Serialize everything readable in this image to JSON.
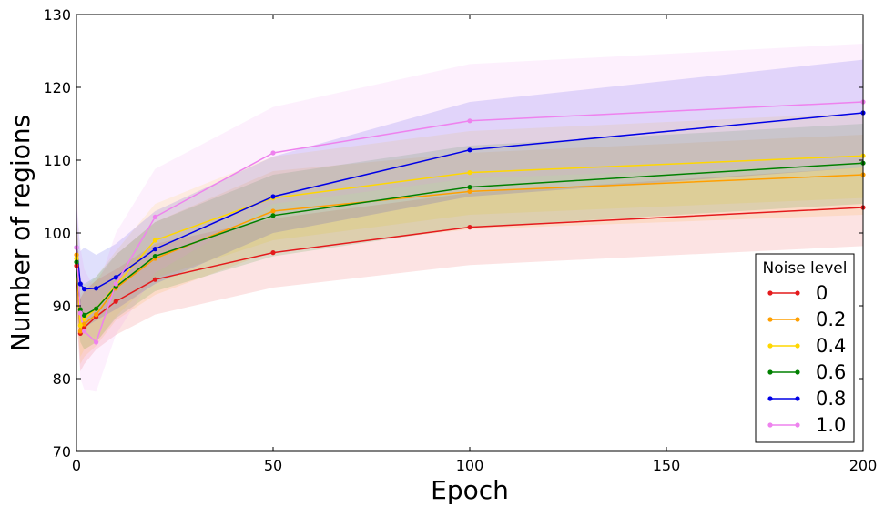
{
  "chart_data": {
    "type": "line",
    "title": "",
    "xlabel": "Epoch",
    "ylabel": "Number of regions",
    "xlim": [
      0,
      200
    ],
    "ylim": [
      70,
      130
    ],
    "x_ticks": [
      0,
      50,
      100,
      150,
      200
    ],
    "y_ticks": [
      70,
      80,
      90,
      100,
      110,
      120,
      130
    ],
    "grid": false,
    "legend": {
      "title": "Noise level",
      "placement": "lower-right"
    },
    "x": [
      0,
      1,
      2,
      5,
      10,
      20,
      50,
      100,
      200
    ],
    "series": [
      {
        "name": "0",
        "color": "#e41a1c",
        "values": [
          95.5,
          86.2,
          87.0,
          88.5,
          90.6,
          93.6,
          97.3,
          100.8,
          103.5
        ],
        "band_low": [
          88.5,
          81.0,
          82.0,
          84.0,
          86.0,
          88.8,
          92.5,
          95.6,
          98.2
        ],
        "band_high": [
          102.0,
          91.0,
          92.0,
          93.5,
          95.0,
          98.5,
          102.0,
          105.5,
          109.0
        ]
      },
      {
        "name": "0.2",
        "color": "#ff9f00",
        "values": [
          97.0,
          86.5,
          87.5,
          88.8,
          92.4,
          96.5,
          103.0,
          105.7,
          108.0
        ],
        "band_low": [
          90.0,
          82.0,
          83.0,
          84.5,
          88.0,
          91.5,
          97.5,
          100.5,
          102.5
        ],
        "band_high": [
          104.0,
          91.0,
          92.0,
          93.5,
          97.0,
          101.5,
          108.5,
          111.0,
          113.5
        ]
      },
      {
        "name": "0.4",
        "color": "#ffd700",
        "values": [
          96.5,
          87.3,
          88.2,
          89.6,
          92.8,
          99.0,
          104.8,
          108.3,
          110.6
        ],
        "band_low": [
          89.5,
          83.0,
          84.0,
          85.0,
          88.5,
          93.8,
          99.0,
          102.5,
          104.8
        ],
        "band_high": [
          103.5,
          91.5,
          92.5,
          94.0,
          97.5,
          104.0,
          110.5,
          114.0,
          116.5
        ]
      },
      {
        "name": "0.6",
        "color": "#008000",
        "values": [
          96.0,
          89.5,
          88.7,
          89.6,
          92.6,
          96.8,
          102.4,
          106.3,
          109.6
        ],
        "band_low": [
          89.5,
          85.0,
          84.0,
          85.0,
          88.3,
          92.0,
          96.8,
          100.8,
          104.0
        ],
        "band_high": [
          102.5,
          93.5,
          93.0,
          94.0,
          97.0,
          101.5,
          108.0,
          112.0,
          115.0
        ]
      },
      {
        "name": "0.8",
        "color": "#0000e6",
        "values": [
          98.0,
          93.0,
          92.3,
          92.4,
          93.9,
          97.8,
          105.0,
          111.4,
          116.5
        ],
        "band_low": [
          92.0,
          88.0,
          87.0,
          88.0,
          89.5,
          93.0,
          100.0,
          105.0,
          109.0
        ],
        "band_high": [
          104.0,
          97.5,
          98.0,
          97.0,
          98.5,
          103.0,
          110.5,
          118.0,
          123.8
        ]
      },
      {
        "name": "1.0",
        "color": "#ee82ee",
        "values": [
          98.0,
          89.0,
          86.5,
          85.0,
          93.0,
          102.2,
          111.0,
          115.4,
          118.0
        ],
        "band_low": [
          90.0,
          80.0,
          78.5,
          78.2,
          86.0,
          94.5,
          104.0,
          107.5,
          109.5
        ],
        "band_high": [
          106.0,
          98.0,
          95.0,
          92.0,
          100.0,
          108.8,
          117.3,
          123.2,
          126.0
        ]
      }
    ]
  }
}
